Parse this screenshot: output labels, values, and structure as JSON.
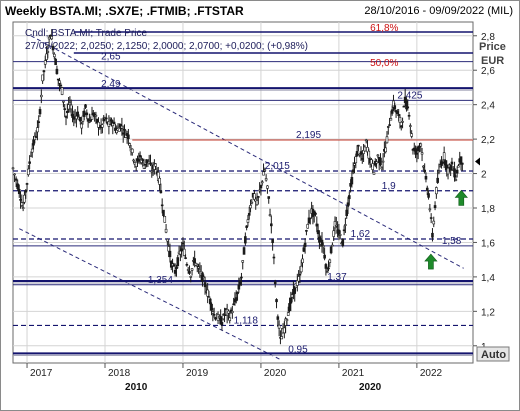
{
  "header": {
    "title": "Weekly BSTA.MI; .SX7E; .FTMIB; .FTSTAR",
    "date_range": "28/10/2016 - 09/09/2022 (MIL)"
  },
  "legend": {
    "line1": "Cndl; BSTA.MI; Trade Price",
    "line2": "27/05/2022; 2,0250; 2,1250; 2,0000; 2,0700; +0,0200; (+0,98%)"
  },
  "axis": {
    "price_label": "Price",
    "currency_label": "EUR",
    "auto_button": "Auto"
  },
  "chart_data": {
    "type": "candlestick",
    "title": "Weekly BSTA.MI; .SX7E; .FTMIB; .FTSTAR",
    "ylabel": "Price EUR",
    "ylim": [
      0.9,
      2.88
    ],
    "yticks": [
      1,
      1.2,
      1.4,
      1.6,
      1.8,
      2,
      2.2,
      2.4,
      2.6,
      2.8
    ],
    "ytick_labels": [
      "1",
      "1,2",
      "1,4",
      "1,6",
      "1,8",
      "2",
      "2,2",
      "2,4",
      "2,6",
      "2,8"
    ],
    "xlim": [
      2016.82,
      2022.72
    ],
    "xticks": [
      2017,
      2018,
      2019,
      2020,
      2021,
      2022
    ],
    "xtick_labels": [
      "2017",
      "2018",
      "2019",
      "2020",
      "2021",
      "2022"
    ],
    "decade_labels": [
      {
        "x": 2018.4,
        "text": "2010"
      },
      {
        "x": 2021.4,
        "text": "2020"
      }
    ],
    "last_close": 2.07,
    "fibonacci": [
      {
        "label": "61,8%",
        "y": 2.975
      },
      {
        "label": "50,0%",
        "y": 2.835
      }
    ],
    "levels": [
      {
        "label": "2,65",
        "y": 2.65,
        "style": "solid",
        "color": "#2b2b7a"
      },
      {
        "label": "2,49",
        "y": 2.49,
        "style": "double",
        "color": "#14146e"
      },
      {
        "label": "2,425",
        "y": 2.425,
        "style": "solid",
        "color": "#2b2b7a"
      },
      {
        "label": "2,195",
        "y": 2.195,
        "style": "solid",
        "color": "#c0392b"
      },
      {
        "label": "2,015",
        "y": 2.015,
        "style": "dashed",
        "color": "#14146e"
      },
      {
        "label": "1,9",
        "y": 1.9,
        "style": "dashed",
        "color": "#14146e"
      },
      {
        "label": "1,62",
        "y": 1.62,
        "style": "dashed",
        "color": "#14146e"
      },
      {
        "label": "1,58",
        "y": 1.58,
        "style": "solid",
        "color": "#2b2b7a"
      },
      {
        "label": "1,37",
        "y": 1.37,
        "style": "double",
        "color": "#14146e"
      },
      {
        "label": "1,354",
        "y": 1.354,
        "style": "solid",
        "color": "#2b2b7a"
      },
      {
        "label": "1,118",
        "y": 1.118,
        "style": "dashed",
        "color": "#14146e"
      },
      {
        "label": "0,95",
        "y": 0.95,
        "style": "double",
        "color": "#14146e"
      }
    ],
    "trend_channel": [
      {
        "x1": 2017.05,
        "y1": 2.8,
        "x2": 2022.6,
        "y2": 1.45
      },
      {
        "x1": 2016.9,
        "y1": 1.68,
        "x2": 2020.25,
        "y2": 0.92
      }
    ],
    "signals": [
      {
        "x": 2022.18,
        "y": 1.48,
        "type": "buy-arrow"
      },
      {
        "x": 2022.57,
        "y": 1.85,
        "type": "buy-arrow"
      }
    ],
    "price_path": [
      [
        2016.82,
        2.03
      ],
      [
        2016.9,
        1.9
      ],
      [
        2016.95,
        1.8
      ],
      [
        2017.0,
        1.95
      ],
      [
        2017.05,
        2.12
      ],
      [
        2017.1,
        2.2
      ],
      [
        2017.15,
        2.28
      ],
      [
        2017.2,
        2.55
      ],
      [
        2017.25,
        2.68
      ],
      [
        2017.3,
        2.82
      ],
      [
        2017.35,
        2.7
      ],
      [
        2017.4,
        2.55
      ],
      [
        2017.45,
        2.48
      ],
      [
        2017.5,
        2.33
      ],
      [
        2017.55,
        2.4
      ],
      [
        2017.6,
        2.32
      ],
      [
        2017.65,
        2.35
      ],
      [
        2017.7,
        2.28
      ],
      [
        2017.75,
        2.38
      ],
      [
        2017.8,
        2.3
      ],
      [
        2017.85,
        2.35
      ],
      [
        2017.9,
        2.3
      ],
      [
        2017.95,
        2.26
      ],
      [
        2018.0,
        2.32
      ],
      [
        2018.05,
        2.28
      ],
      [
        2018.1,
        2.3
      ],
      [
        2018.15,
        2.25
      ],
      [
        2018.2,
        2.28
      ],
      [
        2018.25,
        2.24
      ],
      [
        2018.3,
        2.22
      ],
      [
        2018.35,
        2.12
      ],
      [
        2018.4,
        2.05
      ],
      [
        2018.45,
        2.1
      ],
      [
        2018.5,
        2.05
      ],
      [
        2018.55,
        2.08
      ],
      [
        2018.6,
        2.02
      ],
      [
        2018.65,
        2.05
      ],
      [
        2018.7,
        1.95
      ],
      [
        2018.75,
        1.78
      ],
      [
        2018.8,
        1.62
      ],
      [
        2018.85,
        1.48
      ],
      [
        2018.9,
        1.43
      ],
      [
        2018.95,
        1.52
      ],
      [
        2019.0,
        1.58
      ],
      [
        2019.05,
        1.48
      ],
      [
        2019.1,
        1.42
      ],
      [
        2019.15,
        1.5
      ],
      [
        2019.2,
        1.44
      ],
      [
        2019.25,
        1.4
      ],
      [
        2019.3,
        1.33
      ],
      [
        2019.35,
        1.26
      ],
      [
        2019.4,
        1.18
      ],
      [
        2019.45,
        1.16
      ],
      [
        2019.5,
        1.14
      ],
      [
        2019.55,
        1.2
      ],
      [
        2019.6,
        1.17
      ],
      [
        2019.65,
        1.23
      ],
      [
        2019.7,
        1.3
      ],
      [
        2019.75,
        1.4
      ],
      [
        2019.8,
        1.62
      ],
      [
        2019.85,
        1.78
      ],
      [
        2019.9,
        1.88
      ],
      [
        2019.95,
        1.82
      ],
      [
        2020.0,
        1.93
      ],
      [
        2020.05,
        2.02
      ],
      [
        2020.1,
        1.85
      ],
      [
        2020.15,
        1.62
      ],
      [
        2020.2,
        1.25
      ],
      [
        2020.25,
        1.03
      ],
      [
        2020.3,
        1.1
      ],
      [
        2020.35,
        1.2
      ],
      [
        2020.4,
        1.28
      ],
      [
        2020.45,
        1.35
      ],
      [
        2020.5,
        1.4
      ],
      [
        2020.55,
        1.55
      ],
      [
        2020.6,
        1.7
      ],
      [
        2020.65,
        1.78
      ],
      [
        2020.7,
        1.75
      ],
      [
        2020.75,
        1.62
      ],
      [
        2020.8,
        1.58
      ],
      [
        2020.85,
        1.42
      ],
      [
        2020.9,
        1.55
      ],
      [
        2020.95,
        1.7
      ],
      [
        2021.0,
        1.65
      ],
      [
        2021.05,
        1.6
      ],
      [
        2021.1,
        1.78
      ],
      [
        2021.15,
        1.92
      ],
      [
        2021.2,
        2.05
      ],
      [
        2021.25,
        2.15
      ],
      [
        2021.3,
        2.08
      ],
      [
        2021.35,
        2.18
      ],
      [
        2021.4,
        2.08
      ],
      [
        2021.45,
        2.02
      ],
      [
        2021.5,
        2.1
      ],
      [
        2021.55,
        2.05
      ],
      [
        2021.6,
        2.15
      ],
      [
        2021.65,
        2.3
      ],
      [
        2021.7,
        2.4
      ],
      [
        2021.75,
        2.35
      ],
      [
        2021.8,
        2.28
      ],
      [
        2021.85,
        2.42
      ],
      [
        2021.9,
        2.36
      ],
      [
        2021.95,
        2.15
      ],
      [
        2022.0,
        2.12
      ],
      [
        2022.05,
        2.18
      ],
      [
        2022.1,
        2.0
      ],
      [
        2022.15,
        1.88
      ],
      [
        2022.2,
        1.64
      ],
      [
        2022.25,
        1.9
      ],
      [
        2022.3,
        2.05
      ],
      [
        2022.35,
        2.1
      ],
      [
        2022.4,
        2.02
      ],
      [
        2022.45,
        2.05
      ],
      [
        2022.5,
        1.98
      ],
      [
        2022.55,
        2.08
      ],
      [
        2022.6,
        2.07
      ]
    ]
  }
}
